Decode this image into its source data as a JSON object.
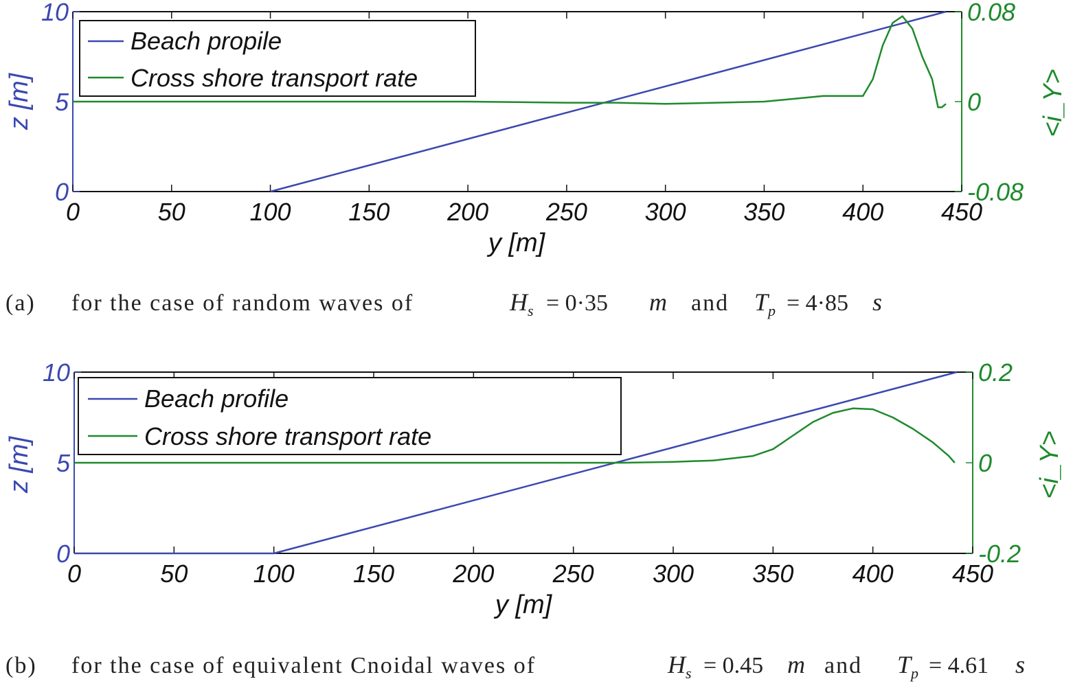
{
  "chart_data": [
    {
      "type": "line",
      "panel": "a",
      "xlabel": "y [m]",
      "ylabel_left": "z [m]",
      "ylabel_right": "<i_Y>",
      "xlim": [
        0,
        450
      ],
      "ylim_left": [
        0,
        10
      ],
      "ylim_right": [
        -0.08,
        0.08
      ],
      "x_ticks": [
        "0",
        "50",
        "100",
        "150",
        "200",
        "250",
        "300",
        "350",
        "400",
        "450"
      ],
      "y_left_ticks": [
        "0",
        "5",
        "10"
      ],
      "y_right_ticks": [
        "-0.08",
        "0",
        "0.08"
      ],
      "legend": [
        "Beach propile",
        "Cross shore transport rate"
      ],
      "legend_position": "top-left",
      "colors": {
        "profile": "#3a48b0",
        "transport": "#1e8a2c"
      },
      "series": [
        {
          "name": "Beach propile",
          "axis": "left",
          "x": [
            100,
            442
          ],
          "y": [
            0,
            10
          ]
        },
        {
          "name": "Cross shore transport rate",
          "axis": "right",
          "x": [
            0,
            50,
            100,
            150,
            200,
            250,
            275,
            300,
            350,
            380,
            400,
            405,
            410,
            415,
            420,
            425,
            430,
            435,
            438,
            440,
            442
          ],
          "y": [
            0,
            0,
            0,
            0,
            0,
            -0.001,
            -0.001,
            -0.002,
            0,
            0.005,
            0.005,
            0.02,
            0.05,
            0.07,
            0.076,
            0.065,
            0.04,
            0.02,
            -0.005,
            -0.005,
            -0.002
          ]
        }
      ],
      "caption": {
        "label": "(a)",
        "text": "for the case of random waves of",
        "hs_math": "H",
        "hs_sub": "s",
        "hs_value": "= 0·35",
        "hs_unit": "m",
        "and": "and",
        "tp_math": "T",
        "tp_sub": "p",
        "tp_value": "= 4·85",
        "tp_unit": "s"
      }
    },
    {
      "type": "line",
      "panel": "b",
      "xlabel": "y [m]",
      "ylabel_left": "z [m]",
      "ylabel_right": "<i_Y>",
      "xlim": [
        0,
        450
      ],
      "ylim_left": [
        0,
        10
      ],
      "ylim_right": [
        -0.2,
        0.2
      ],
      "x_ticks": [
        "0",
        "50",
        "100",
        "150",
        "200",
        "250",
        "300",
        "350",
        "400",
        "450"
      ],
      "y_left_ticks": [
        "0",
        "5",
        "10"
      ],
      "y_right_ticks": [
        "-0.2",
        "0",
        "0.2"
      ],
      "legend": [
        "Beach profile",
        "Cross shore transport rate"
      ],
      "legend_position": "top-left",
      "colors": {
        "profile": "#3a48b0",
        "transport": "#1e8a2c"
      },
      "series": [
        {
          "name": "Beach profile",
          "axis": "left",
          "x": [
            0,
            100,
            442
          ],
          "y": [
            0,
            0,
            10
          ]
        },
        {
          "name": "Cross shore transport rate",
          "axis": "right",
          "x": [
            0,
            100,
            200,
            250,
            275,
            300,
            320,
            340,
            350,
            360,
            370,
            380,
            390,
            400,
            410,
            420,
            430,
            438,
            441
          ],
          "y": [
            0,
            0,
            0,
            0,
            0,
            0.002,
            0.005,
            0.015,
            0.03,
            0.06,
            0.09,
            0.11,
            0.12,
            0.118,
            0.1,
            0.075,
            0.045,
            0.015,
            0
          ]
        }
      ],
      "caption": {
        "label": "(b)",
        "text": "for the case of equivalent Cnoidal waves of",
        "hs_math": "H",
        "hs_sub": "s",
        "hs_value": "= 0.45",
        "hs_unit": "m",
        "and": "and",
        "tp_math": "T",
        "tp_sub": "p",
        "tp_value": "= 4.61",
        "tp_unit": "s"
      }
    }
  ]
}
